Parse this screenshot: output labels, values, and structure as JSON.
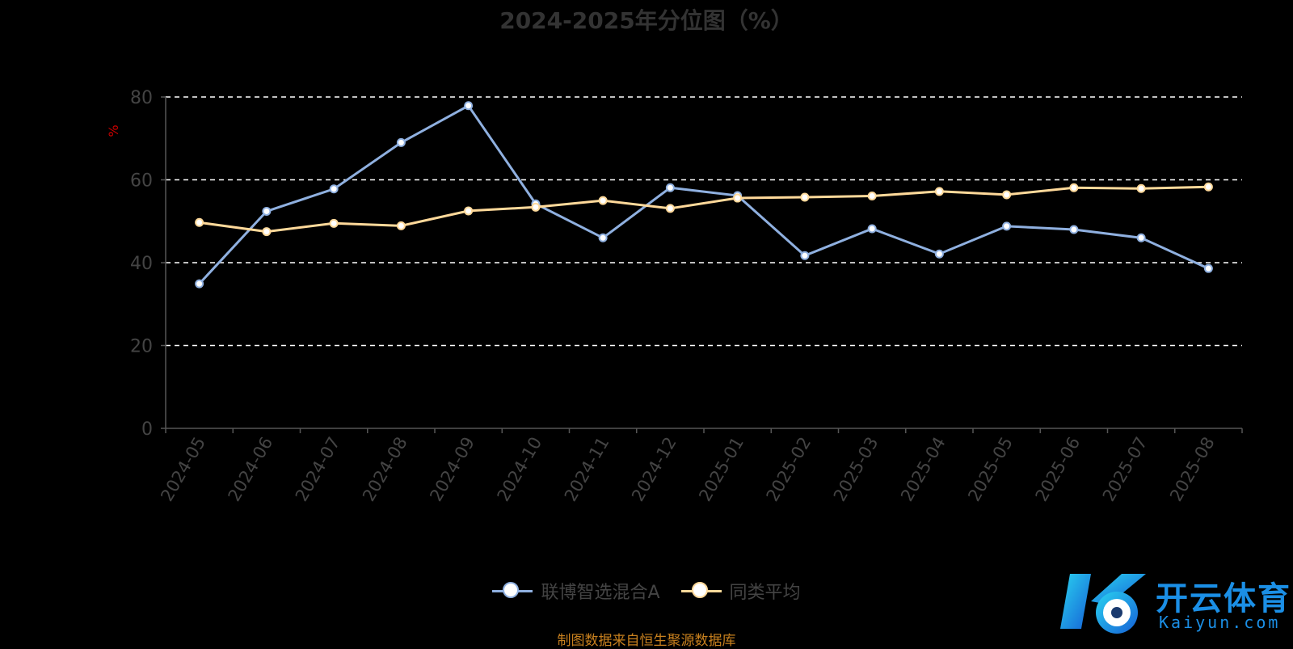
{
  "title": "2024-2025年分位图（%）",
  "source": "制图数据来自恒生聚源数据库",
  "logo": {
    "text": "开云体育",
    "sub": "Kaiyun.com"
  },
  "colors": {
    "series_a": "#8fb0e0",
    "series_b": "#ffd99a",
    "grid": "#ffffff",
    "axis": "#555555",
    "ylabel": "#cc0000"
  },
  "chart_data": {
    "type": "line",
    "title": "2024-2025年分位图（%）",
    "ylabel": "%",
    "ylim": [
      0,
      80
    ],
    "yticks": [
      0,
      20,
      40,
      60,
      80
    ],
    "grid": true,
    "legend_position": "bottom",
    "categories": [
      "2024-05",
      "2024-06",
      "2024-07",
      "2024-08",
      "2024-09",
      "2024-10",
      "2024-11",
      "2024-12",
      "2025-01",
      "2025-02",
      "2025-03",
      "2025-04",
      "2025-05",
      "2025-06",
      "2025-07",
      "2025-08"
    ],
    "series": [
      {
        "name": "联博智选混合A",
        "values": [
          34.9,
          52.4,
          57.8,
          69.0,
          77.9,
          54.2,
          46.0,
          58.1,
          56.2,
          41.7,
          48.2,
          42.1,
          48.8,
          48.0,
          46.0,
          38.6
        ]
      },
      {
        "name": "同类平均",
        "values": [
          49.7,
          47.5,
          49.5,
          48.9,
          52.5,
          53.4,
          55.0,
          53.1,
          55.6,
          55.8,
          56.1,
          57.2,
          56.4,
          58.1,
          57.9,
          58.3
        ]
      }
    ]
  }
}
